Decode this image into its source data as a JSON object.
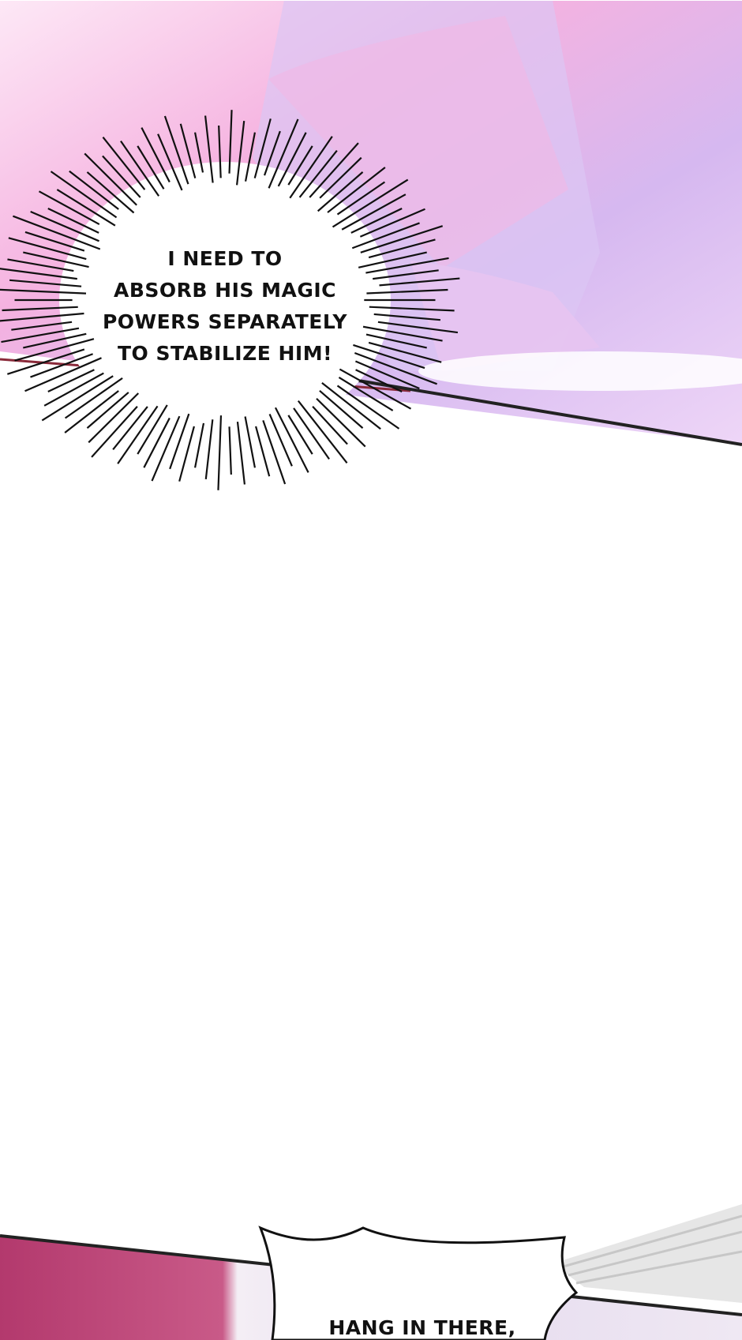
{
  "panels": [
    {
      "scene": "top",
      "colors": {
        "pink": "#f3a9dc",
        "lilac": "#c9b5ef",
        "white": "#fbe9fa"
      }
    },
    {
      "scene": "bottom",
      "colors": {
        "curtain": "#b3396d",
        "wall": "#e8dff0",
        "rail": "#d9d9d9"
      }
    }
  ],
  "bubbles": {
    "thought": {
      "lines": [
        "I NEED TO",
        "ABSORB HIS MAGIC",
        "POWERS SEPARATELY",
        "TO STABILIZE HIM!"
      ]
    },
    "speech": {
      "lines": [
        "HANG IN THERE,"
      ]
    }
  }
}
